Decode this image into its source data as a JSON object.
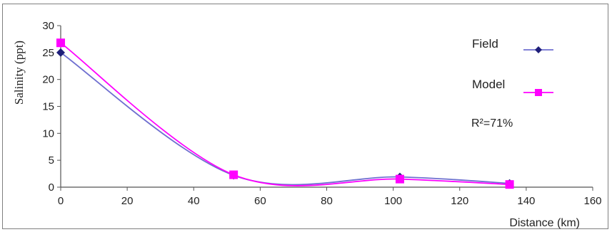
{
  "chart_data": {
    "type": "line",
    "title": "",
    "xlabel": "Distance (km)",
    "ylabel": "Salinity (ppt)",
    "xlim": [
      0,
      160
    ],
    "ylim": [
      0,
      30
    ],
    "xticks": [
      0,
      20,
      40,
      60,
      80,
      100,
      120,
      140,
      160
    ],
    "yticks": [
      0,
      5,
      10,
      15,
      20,
      25,
      30
    ],
    "grid": false,
    "smooth": true,
    "legend_position": "right",
    "series": [
      {
        "name": "Field",
        "color": "#1f1f7a",
        "line_color": "#6f6fd0",
        "marker": "diamond",
        "points": [
          {
            "x": 0,
            "y": 25.0
          },
          {
            "x": 52,
            "y": 2.2
          },
          {
            "x": 102,
            "y": 1.9
          },
          {
            "x": 135,
            "y": 0.7
          }
        ]
      },
      {
        "name": "Model",
        "color": "#ff00ff",
        "line_color": "#ff00ff",
        "marker": "square",
        "points": [
          {
            "x": 0,
            "y": 26.8
          },
          {
            "x": 52,
            "y": 2.3
          },
          {
            "x": 102,
            "y": 1.5
          },
          {
            "x": 135,
            "y": 0.5
          }
        ]
      }
    ],
    "annotation": "R²=71%"
  }
}
